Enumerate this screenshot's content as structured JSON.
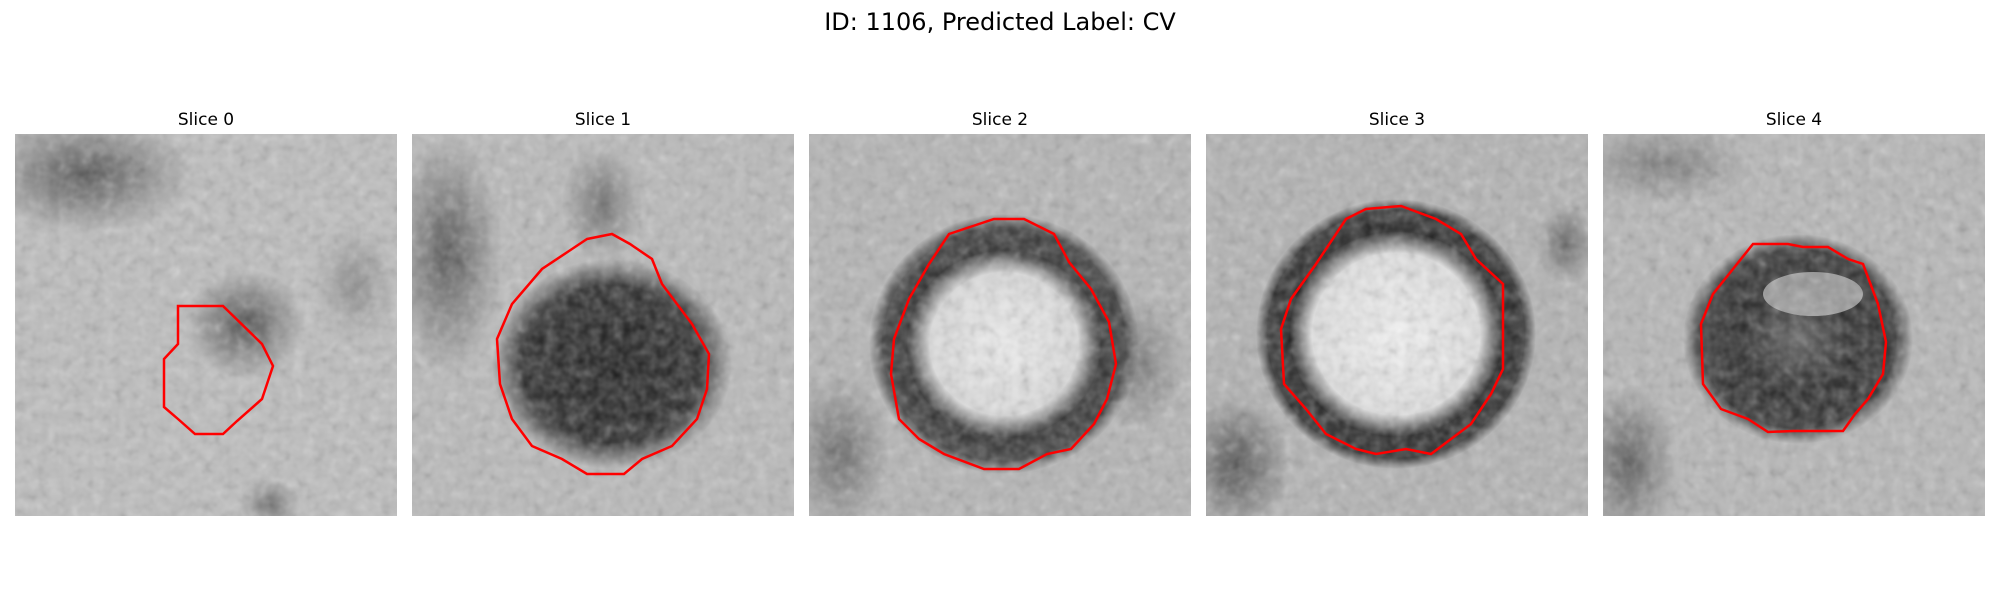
{
  "figure": {
    "title": "ID: 1106, Predicted Label: CV",
    "contour_color": "#ff0000"
  },
  "slices": [
    {
      "label": "Slice 0"
    },
    {
      "label": "Slice 1"
    },
    {
      "label": "Slice 2"
    },
    {
      "label": "Slice 3"
    },
    {
      "label": "Slice 4"
    }
  ]
}
